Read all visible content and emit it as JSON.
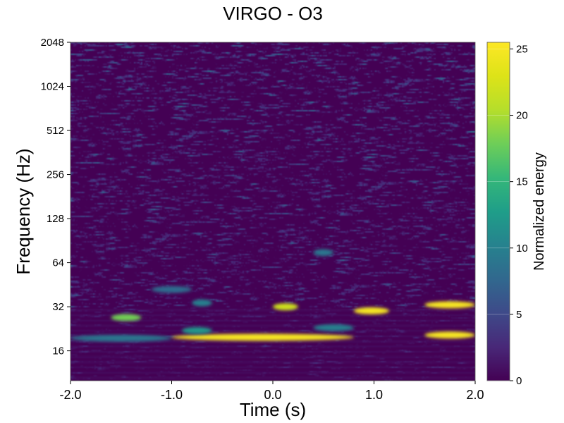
{
  "chart_data": {
    "type": "heatmap",
    "title": "VIRGO - O3",
    "xlabel": "Time (s)",
    "ylabel": "Frequency (Hz)",
    "xlim": [
      -2.0,
      2.0
    ],
    "ylim": [
      10,
      2048
    ],
    "yscale": "log2",
    "x_ticks": [
      {
        "value": -2.0,
        "label": "-2.0"
      },
      {
        "value": -1.0,
        "label": "-1.0"
      },
      {
        "value": 0.0,
        "label": "0.0"
      },
      {
        "value": 1.0,
        "label": "1.0"
      },
      {
        "value": 2.0,
        "label": "2.0"
      }
    ],
    "y_ticks": [
      {
        "value": 16,
        "label": "16"
      },
      {
        "value": 32,
        "label": "32"
      },
      {
        "value": 64,
        "label": "64"
      },
      {
        "value": 128,
        "label": "128"
      },
      {
        "value": 256,
        "label": "256"
      },
      {
        "value": 512,
        "label": "512"
      },
      {
        "value": 1024,
        "label": "1024"
      },
      {
        "value": 2048,
        "label": "2048"
      }
    ],
    "colorbar": {
      "label": "Normalized energy",
      "colormap": "viridis",
      "range": [
        0,
        25.5
      ],
      "ticks": [
        {
          "value": 0,
          "label": "0"
        },
        {
          "value": 5,
          "label": "5"
        },
        {
          "value": 10,
          "label": "10"
        },
        {
          "value": 15,
          "label": "15"
        },
        {
          "value": 20,
          "label": "20"
        },
        {
          "value": 25,
          "label": "25"
        }
      ]
    },
    "grid": false,
    "features": [
      {
        "t0": -2.0,
        "t1": -1.0,
        "f": 19.5,
        "energy": 9
      },
      {
        "t0": -1.0,
        "t1": 0.8,
        "f": 19.8,
        "energy": 25
      },
      {
        "t0": 1.5,
        "t1": 2.0,
        "f": 20.5,
        "energy": 25
      },
      {
        "t0": -1.6,
        "t1": -1.3,
        "f": 27,
        "energy": 18
      },
      {
        "t0": 0.0,
        "t1": 0.25,
        "f": 32,
        "energy": 22
      },
      {
        "t0": 0.8,
        "t1": 1.15,
        "f": 30,
        "energy": 25
      },
      {
        "t0": 1.5,
        "t1": 2.0,
        "f": 33,
        "energy": 25
      },
      {
        "t0": -0.9,
        "t1": -0.6,
        "f": 22,
        "energy": 12
      },
      {
        "t0": 0.4,
        "t1": 0.8,
        "f": 23,
        "energy": 10
      },
      {
        "t0": -1.2,
        "t1": -0.8,
        "f": 42,
        "energy": 8
      },
      {
        "t0": 0.4,
        "t1": 0.6,
        "f": 75,
        "energy": 9
      },
      {
        "t0": -0.8,
        "t1": -0.6,
        "f": 34,
        "energy": 10
      }
    ]
  }
}
